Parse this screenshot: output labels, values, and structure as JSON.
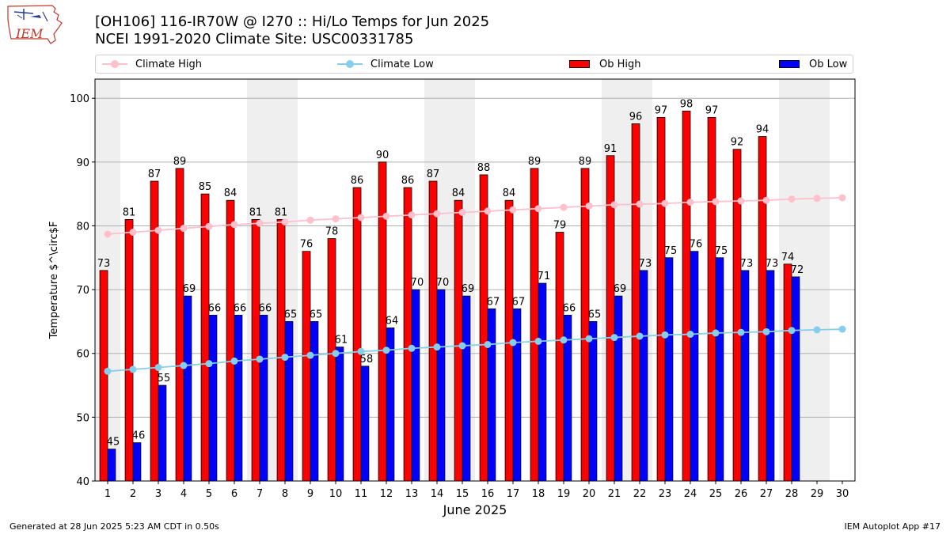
{
  "header": {
    "title_line1": "[OH106] 116-IR70W @ I270 :: Hi/Lo Temps for Jun 2025",
    "title_line2": "NCEI 1991-2020 Climate Site: USC00331785",
    "logo_text": "IEM"
  },
  "legend": {
    "climate_high": "Climate High",
    "climate_low": "Climate Low",
    "ob_high": "Ob High",
    "ob_low": "Ob Low"
  },
  "colors": {
    "climate_high": "#ffc0cb",
    "climate_low": "#87ceeb",
    "ob_high": "#ff0000",
    "ob_low": "#0000ff",
    "weekend_band": "#efefef",
    "grid": "#b0b0b0"
  },
  "footer": {
    "left": "Generated at 28 Jun 2025 5:23 AM CDT in 0.50s",
    "right": "IEM Autoplot App #17"
  },
  "chart_data": {
    "type": "bar",
    "title": "[OH106] 116-IR70W @ I270 :: Hi/Lo Temps for Jun 2025",
    "subtitle": "NCEI 1991-2020 Climate Site: USC00331785",
    "xlabel": "June 2025",
    "ylabel": "Temperature $^\\circ$F",
    "ylim": [
      40,
      103
    ],
    "yticks": [
      40,
      50,
      60,
      70,
      80,
      90,
      100
    ],
    "x": [
      1,
      2,
      3,
      4,
      5,
      6,
      7,
      8,
      9,
      10,
      11,
      12,
      13,
      14,
      15,
      16,
      17,
      18,
      19,
      20,
      21,
      22,
      23,
      24,
      25,
      26,
      27,
      28,
      29,
      30
    ],
    "ob_high": [
      73,
      81,
      87,
      89,
      85,
      84,
      81,
      81,
      76,
      78,
      86,
      90,
      86,
      87,
      84,
      88,
      84,
      89,
      79,
      89,
      91,
      96,
      97,
      98,
      97,
      92,
      94,
      74,
      null,
      null
    ],
    "ob_low": [
      45,
      46,
      55,
      69,
      66,
      66,
      66,
      65,
      65,
      61,
      58,
      64,
      70,
      70,
      69,
      67,
      67,
      71,
      66,
      65,
      69,
      73,
      75,
      76,
      75,
      73,
      73,
      72,
      null,
      null
    ],
    "climate_high": [
      78.7,
      79.0,
      79.3,
      79.6,
      79.9,
      80.2,
      80.4,
      80.6,
      80.9,
      81.1,
      81.3,
      81.5,
      81.7,
      81.9,
      82.1,
      82.3,
      82.5,
      82.7,
      82.9,
      83.1,
      83.3,
      83.4,
      83.5,
      83.7,
      83.8,
      83.9,
      84.0,
      84.2,
      84.3,
      84.4
    ],
    "climate_low": [
      57.2,
      57.5,
      57.8,
      58.1,
      58.4,
      58.8,
      59.1,
      59.4,
      59.7,
      60.0,
      60.3,
      60.5,
      60.8,
      61.0,
      61.2,
      61.4,
      61.7,
      61.9,
      62.1,
      62.3,
      62.5,
      62.7,
      62.9,
      63.0,
      63.2,
      63.3,
      63.4,
      63.6,
      63.7,
      63.8
    ],
    "weekend_bands": [
      [
        1,
        1
      ],
      [
        7,
        8
      ],
      [
        14,
        15
      ],
      [
        21,
        22
      ],
      [
        28,
        29
      ]
    ],
    "grid": true,
    "legend_position": "top"
  }
}
